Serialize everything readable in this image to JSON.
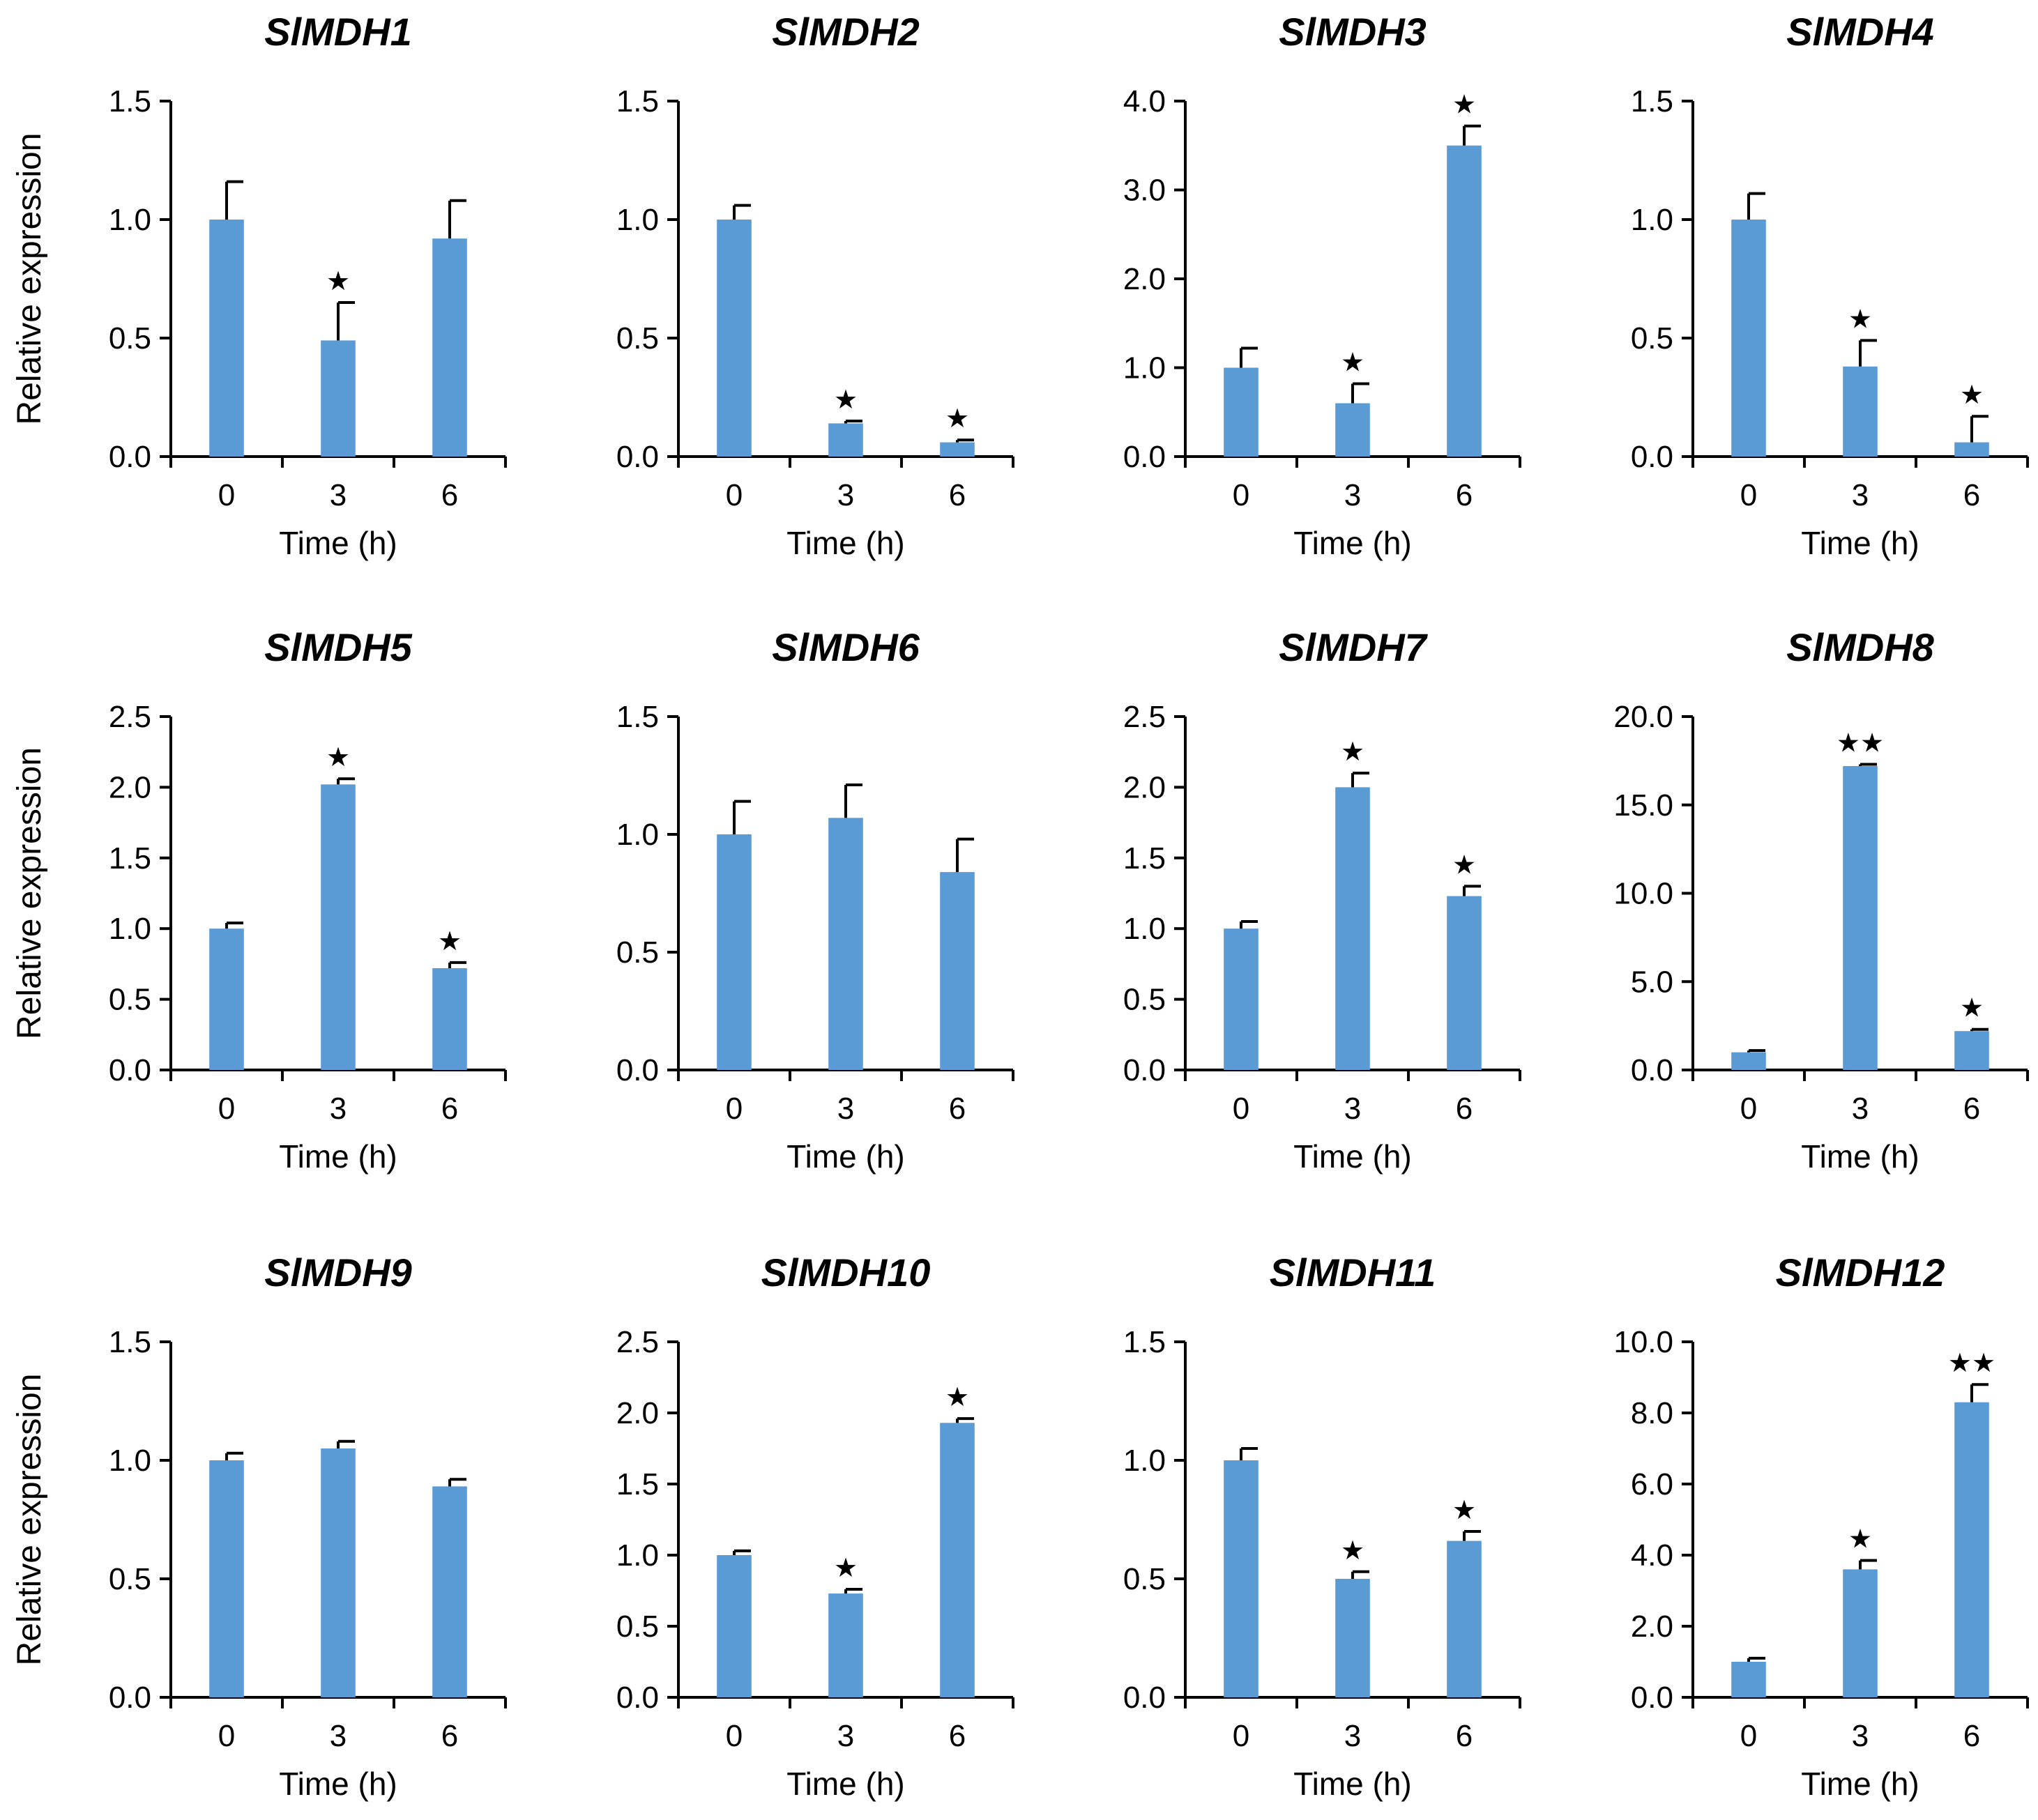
{
  "figure": {
    "bar_color": "#5b9bd5",
    "axis_color": "#000000"
  },
  "chart_data": [
    {
      "type": "bar",
      "title": "SlMDH1",
      "categories": [
        "0",
        "3",
        "6"
      ],
      "values": [
        1.0,
        0.49,
        0.92
      ],
      "errors": [
        0.16,
        0.16,
        0.16
      ],
      "stars": [
        "",
        "★",
        ""
      ],
      "ylim": [
        0,
        1.5
      ],
      "yticks": [
        "0.0",
        "0.5",
        "1.0",
        "1.5"
      ],
      "xlabel": "Time (h)",
      "ylabel": "Relative expression"
    },
    {
      "type": "bar",
      "title": "SlMDH2",
      "categories": [
        "0",
        "3",
        "6"
      ],
      "values": [
        1.0,
        0.14,
        0.06
      ],
      "errors": [
        0.06,
        0.01,
        0.01
      ],
      "stars": [
        "",
        "★",
        "★"
      ],
      "ylim": [
        0,
        1.5
      ],
      "yticks": [
        "0.0",
        "0.5",
        "1.0",
        "1.5"
      ],
      "xlabel": "Time (h)",
      "ylabel": ""
    },
    {
      "type": "bar",
      "title": "SlMDH3",
      "categories": [
        "0",
        "3",
        "6"
      ],
      "values": [
        1.0,
        0.6,
        3.5
      ],
      "errors": [
        0.22,
        0.22,
        0.22
      ],
      "stars": [
        "",
        "★",
        "★"
      ],
      "ylim": [
        0,
        4.0
      ],
      "yticks": [
        "0.0",
        "1.0",
        "2.0",
        "3.0",
        "4.0"
      ],
      "xlabel": "Time (h)",
      "ylabel": ""
    },
    {
      "type": "bar",
      "title": "SlMDH4",
      "categories": [
        "0",
        "3",
        "6"
      ],
      "values": [
        1.0,
        0.38,
        0.06
      ],
      "errors": [
        0.11,
        0.11,
        0.11
      ],
      "stars": [
        "",
        "★",
        "★"
      ],
      "ylim": [
        0,
        1.5
      ],
      "yticks": [
        "0.0",
        "0.5",
        "1.0",
        "1.5"
      ],
      "xlabel": "Time (h)",
      "ylabel": ""
    },
    {
      "type": "bar",
      "title": "SlMDH5",
      "categories": [
        "0",
        "3",
        "6"
      ],
      "values": [
        1.0,
        2.02,
        0.72
      ],
      "errors": [
        0.04,
        0.04,
        0.04
      ],
      "stars": [
        "",
        "★",
        "★"
      ],
      "ylim": [
        0,
        2.5
      ],
      "yticks": [
        "0.0",
        "0.5",
        "1.0",
        "1.5",
        "2.0",
        "2.5"
      ],
      "xlabel": "Time (h)",
      "ylabel": "Relative expression"
    },
    {
      "type": "bar",
      "title": "SlMDH6",
      "categories": [
        "0",
        "3",
        "6"
      ],
      "values": [
        1.0,
        1.07,
        0.84
      ],
      "errors": [
        0.14,
        0.14,
        0.14
      ],
      "stars": [
        "",
        "",
        ""
      ],
      "ylim": [
        0,
        1.5
      ],
      "yticks": [
        "0.0",
        "0.5",
        "1.0",
        "1.5"
      ],
      "xlabel": "Time (h)",
      "ylabel": ""
    },
    {
      "type": "bar",
      "title": "SlMDH7",
      "categories": [
        "0",
        "3",
        "6"
      ],
      "values": [
        1.0,
        2.0,
        1.23
      ],
      "errors": [
        0.05,
        0.1,
        0.07
      ],
      "stars": [
        "",
        "★",
        "★"
      ],
      "ylim": [
        0,
        2.5
      ],
      "yticks": [
        "0.0",
        "0.5",
        "1.0",
        "1.5",
        "2.0",
        "2.5"
      ],
      "xlabel": "Time (h)",
      "ylabel": ""
    },
    {
      "type": "bar",
      "title": "SlMDH8",
      "categories": [
        "0",
        "3",
        "6"
      ],
      "values": [
        1.0,
        17.2,
        2.2
      ],
      "errors": [
        0.1,
        0.1,
        0.1
      ],
      "stars": [
        "",
        "★★",
        "★"
      ],
      "ylim": [
        0,
        20
      ],
      "yticks": [
        "0.0",
        "5.0",
        "10.0",
        "15.0",
        "20.0"
      ],
      "xlabel": "Time (h)",
      "ylabel": ""
    },
    {
      "type": "bar",
      "title": "SlMDH9",
      "categories": [
        "0",
        "3",
        "6"
      ],
      "values": [
        1.0,
        1.05,
        0.89
      ],
      "errors": [
        0.03,
        0.03,
        0.03
      ],
      "stars": [
        "",
        "",
        ""
      ],
      "ylim": [
        0,
        1.5
      ],
      "yticks": [
        "0.0",
        "0.5",
        "1.0",
        "1.5"
      ],
      "xlabel": "Time (h)",
      "ylabel": "Relative expression"
    },
    {
      "type": "bar",
      "title": "SlMDH10",
      "categories": [
        "0",
        "3",
        "6"
      ],
      "values": [
        1.0,
        0.73,
        1.93
      ],
      "errors": [
        0.03,
        0.03,
        0.03
      ],
      "stars": [
        "",
        "★",
        "★"
      ],
      "ylim": [
        0,
        2.5
      ],
      "yticks": [
        "0.0",
        "0.5",
        "1.0",
        "1.5",
        "2.0",
        "2.5"
      ],
      "xlabel": "Time (h)",
      "ylabel": ""
    },
    {
      "type": "bar",
      "title": "SlMDH11",
      "categories": [
        "0",
        "3",
        "6"
      ],
      "values": [
        1.0,
        0.5,
        0.66
      ],
      "errors": [
        0.05,
        0.03,
        0.04
      ],
      "stars": [
        "",
        "★",
        "★"
      ],
      "ylim": [
        0,
        1.5
      ],
      "yticks": [
        "0.0",
        "0.5",
        "1.0",
        "1.5"
      ],
      "xlabel": "Time (h)",
      "ylabel": ""
    },
    {
      "type": "bar",
      "title": "SlMDH12",
      "categories": [
        "0",
        "3",
        "6"
      ],
      "values": [
        1.0,
        3.6,
        8.3
      ],
      "errors": [
        0.1,
        0.25,
        0.5
      ],
      "stars": [
        "",
        "★",
        "★★"
      ],
      "ylim": [
        0,
        10
      ],
      "yticks": [
        "0.0",
        "2.0",
        "4.0",
        "6.0",
        "8.0",
        "10.0"
      ],
      "xlabel": "Time (h)",
      "ylabel": ""
    }
  ]
}
